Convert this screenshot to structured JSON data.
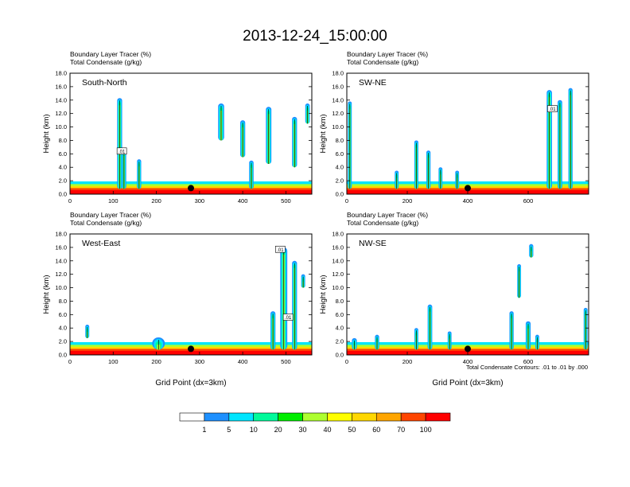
{
  "figure": {
    "title": "2013-12-24_15:00:00",
    "footnote": "Total Condensate Contours: .01 to .01 by .000"
  },
  "chart_data": [
    {
      "type": "heatmap",
      "panel_label": "South-North",
      "field_label": "Boundary Layer Tracer   (%)",
      "contour_label": "Total Condensate   (g/kg)",
      "ylabel": "Height (km)",
      "xlabel": "",
      "xlim": [
        0,
        560
      ],
      "ylim": [
        0,
        18
      ],
      "x_ticks": [
        0,
        100,
        200,
        300,
        400,
        500
      ],
      "y_ticks": [
        "0.0",
        "2.0",
        "4.0",
        "6.0",
        "8.0",
        "10.0",
        "12.0",
        "14.0",
        "16.0",
        "18.0"
      ],
      "marker_x": 280,
      "contour_labels": [
        {
          "x": 120,
          "y": 6.3,
          "text": ".01"
        }
      ],
      "plumes": [
        {
          "x": 115,
          "base": 0.8,
          "top": 14.3,
          "width": 10
        },
        {
          "x": 125,
          "base": 0.8,
          "top": 6.8,
          "width": 8
        },
        {
          "x": 160,
          "base": 0.8,
          "top": 5.2,
          "width": 7
        },
        {
          "x": 420,
          "base": 0.8,
          "top": 5.0,
          "width": 8
        },
        {
          "x": 350,
          "base": 8.0,
          "top": 13.5,
          "width": 14
        },
        {
          "x": 400,
          "base": 5.5,
          "top": 11.0,
          "width": 10
        },
        {
          "x": 460,
          "base": 4.5,
          "top": 13.0,
          "width": 12
        },
        {
          "x": 520,
          "base": 4.0,
          "top": 11.5,
          "width": 10
        },
        {
          "x": 550,
          "base": 10.5,
          "top": 13.5,
          "width": 8
        }
      ]
    },
    {
      "type": "heatmap",
      "panel_label": "SW-NE",
      "field_label": "Boundary Layer Tracer   (%)",
      "contour_label": "Total Condensate   (g/kg)",
      "ylabel": "Height (km)",
      "xlabel": "",
      "xlim": [
        0,
        800
      ],
      "ylim": [
        0,
        18
      ],
      "x_ticks": [
        0,
        200,
        400,
        600
      ],
      "y_ticks": [
        "0.0",
        "2.0",
        "4.0",
        "6.0",
        "8.0",
        "10.0",
        "12.0",
        "14.0",
        "16.0",
        "18.0"
      ],
      "marker_x": 400,
      "contour_labels": [
        {
          "x": 680,
          "y": 12.6,
          "text": ".01"
        }
      ],
      "plumes": [
        {
          "x": 10,
          "base": 0.8,
          "top": 13.8,
          "width": 8
        },
        {
          "x": 165,
          "base": 0.8,
          "top": 3.5,
          "width": 8
        },
        {
          "x": 230,
          "base": 0.8,
          "top": 8.0,
          "width": 9
        },
        {
          "x": 270,
          "base": 0.8,
          "top": 6.5,
          "width": 10
        },
        {
          "x": 310,
          "base": 0.8,
          "top": 4.0,
          "width": 8
        },
        {
          "x": 365,
          "base": 0.8,
          "top": 3.5,
          "width": 8
        },
        {
          "x": 670,
          "base": 0.8,
          "top": 15.5,
          "width": 16
        },
        {
          "x": 705,
          "base": 0.8,
          "top": 14.0,
          "width": 12
        },
        {
          "x": 740,
          "base": 0.8,
          "top": 15.8,
          "width": 10
        }
      ]
    },
    {
      "type": "heatmap",
      "panel_label": "West-East",
      "field_label": "Boundary Layer Tracer   (%)",
      "contour_label": "Total Condensate   (g/kg)",
      "ylabel": "Height (km)",
      "xlabel": "Grid Point (dx=3km)",
      "xlim": [
        0,
        560
      ],
      "ylim": [
        0,
        18
      ],
      "x_ticks": [
        0,
        100,
        200,
        300,
        400,
        500
      ],
      "y_ticks": [
        "0.0",
        "2.0",
        "4.0",
        "6.0",
        "8.0",
        "10.0",
        "12.0",
        "14.0",
        "16.0",
        "18.0"
      ],
      "marker_x": 280,
      "contour_labels": [
        {
          "x": 487,
          "y": 15.6,
          "text": ".01"
        },
        {
          "x": 505,
          "y": 5.5,
          "text": ".01"
        }
      ],
      "plumes": [
        {
          "x": 40,
          "base": 2.5,
          "top": 4.5,
          "width": 6
        },
        {
          "x": 205,
          "base": 0.8,
          "top": 2.6,
          "width": 40
        },
        {
          "x": 470,
          "base": 0.8,
          "top": 6.5,
          "width": 10
        },
        {
          "x": 495,
          "base": 0.8,
          "top": 16.0,
          "width": 18
        },
        {
          "x": 520,
          "base": 0.8,
          "top": 14.0,
          "width": 10
        },
        {
          "x": 540,
          "base": 10.0,
          "top": 12.0,
          "width": 6
        }
      ]
    },
    {
      "type": "heatmap",
      "panel_label": "NW-SE",
      "field_label": "Boundary Layer Tracer   (%)",
      "contour_label": "Total Condensate   (g/kg)",
      "ylabel": "Height (km)",
      "xlabel": "Grid Point (dx=3km)",
      "xlim": [
        0,
        800
      ],
      "ylim": [
        0,
        18
      ],
      "x_ticks": [
        0,
        200,
        400,
        600
      ],
      "y_ticks": [
        "0.0",
        "2.0",
        "4.0",
        "6.0",
        "8.0",
        "10.0",
        "12.0",
        "14.0",
        "16.0",
        "18.0"
      ],
      "marker_x": 400,
      "contour_labels": [],
      "plumes": [
        {
          "x": 25,
          "base": 0.8,
          "top": 2.5,
          "width": 14
        },
        {
          "x": 100,
          "base": 0.8,
          "top": 3.0,
          "width": 10
        },
        {
          "x": 230,
          "base": 0.8,
          "top": 4.0,
          "width": 8
        },
        {
          "x": 275,
          "base": 0.8,
          "top": 7.5,
          "width": 12
        },
        {
          "x": 340,
          "base": 0.8,
          "top": 3.5,
          "width": 8
        },
        {
          "x": 545,
          "base": 0.8,
          "top": 6.5,
          "width": 10
        },
        {
          "x": 600,
          "base": 0.8,
          "top": 5.0,
          "width": 14
        },
        {
          "x": 630,
          "base": 0.8,
          "top": 3.0,
          "width": 8
        },
        {
          "x": 790,
          "base": 0.8,
          "top": 7.0,
          "width": 8
        },
        {
          "x": 570,
          "base": 8.5,
          "top": 13.5,
          "width": 8
        },
        {
          "x": 610,
          "base": 14.5,
          "top": 16.5,
          "width": 10
        }
      ]
    }
  ],
  "colorbar": {
    "labels": [
      "1",
      "5",
      "10",
      "20",
      "30",
      "40",
      "50",
      "60",
      "70",
      "100"
    ],
    "colors": [
      "#ffffff",
      "#1e90ff",
      "#00e5ff",
      "#00fa9a",
      "#00ee00",
      "#adff2f",
      "#ffff00",
      "#ffd700",
      "#ffa500",
      "#ff4500",
      "#ff0000"
    ]
  },
  "colors": {
    "contour": "#000000",
    "frame": "#000000",
    "marker": "#000000"
  }
}
